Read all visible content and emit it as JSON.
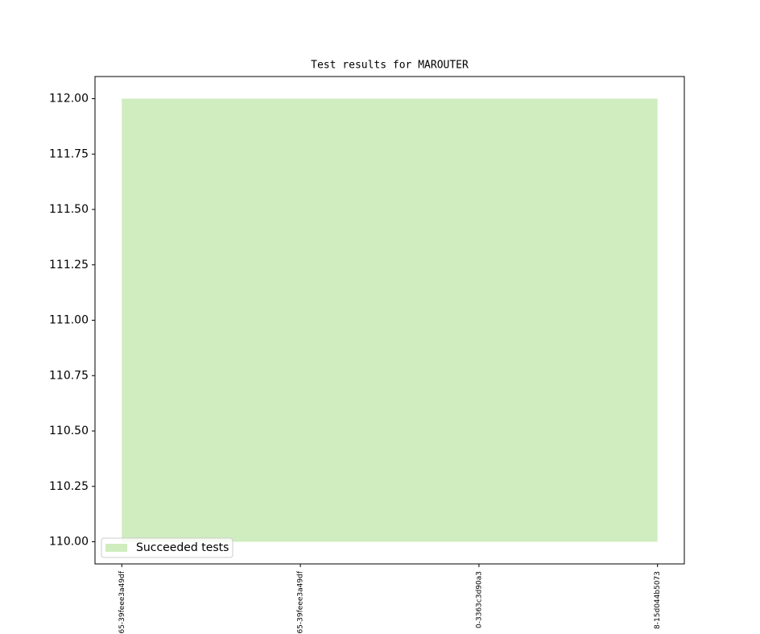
{
  "chart_data": {
    "type": "area",
    "title": "Test results for MAROUTER",
    "categories": [
      "65-39feee3a49df",
      "65-39feee3a49df",
      "0-3363c3d90a3",
      "8-15d044b5073"
    ],
    "series": [
      {
        "name": "Succeeded tests",
        "color": "#cfedbf",
        "lower": [
          110,
          110,
          110,
          110
        ],
        "values": [
          112,
          112,
          112,
          112
        ]
      }
    ],
    "ylim": [
      109.9,
      112.1
    ],
    "yticks": [
      {
        "value": 110,
        "label": "110.00"
      },
      {
        "value": 110.25,
        "label": "110.25"
      },
      {
        "value": 110.5,
        "label": "110.50"
      },
      {
        "value": 110.75,
        "label": "110.75"
      },
      {
        "value": 111,
        "label": "111.00"
      },
      {
        "value": 111.25,
        "label": "111.25"
      },
      {
        "value": 111.5,
        "label": "111.50"
      },
      {
        "value": 111.75,
        "label": "111.75"
      },
      {
        "value": 112,
        "label": "112.00"
      }
    ],
    "legend": "lower left",
    "grid": false
  }
}
